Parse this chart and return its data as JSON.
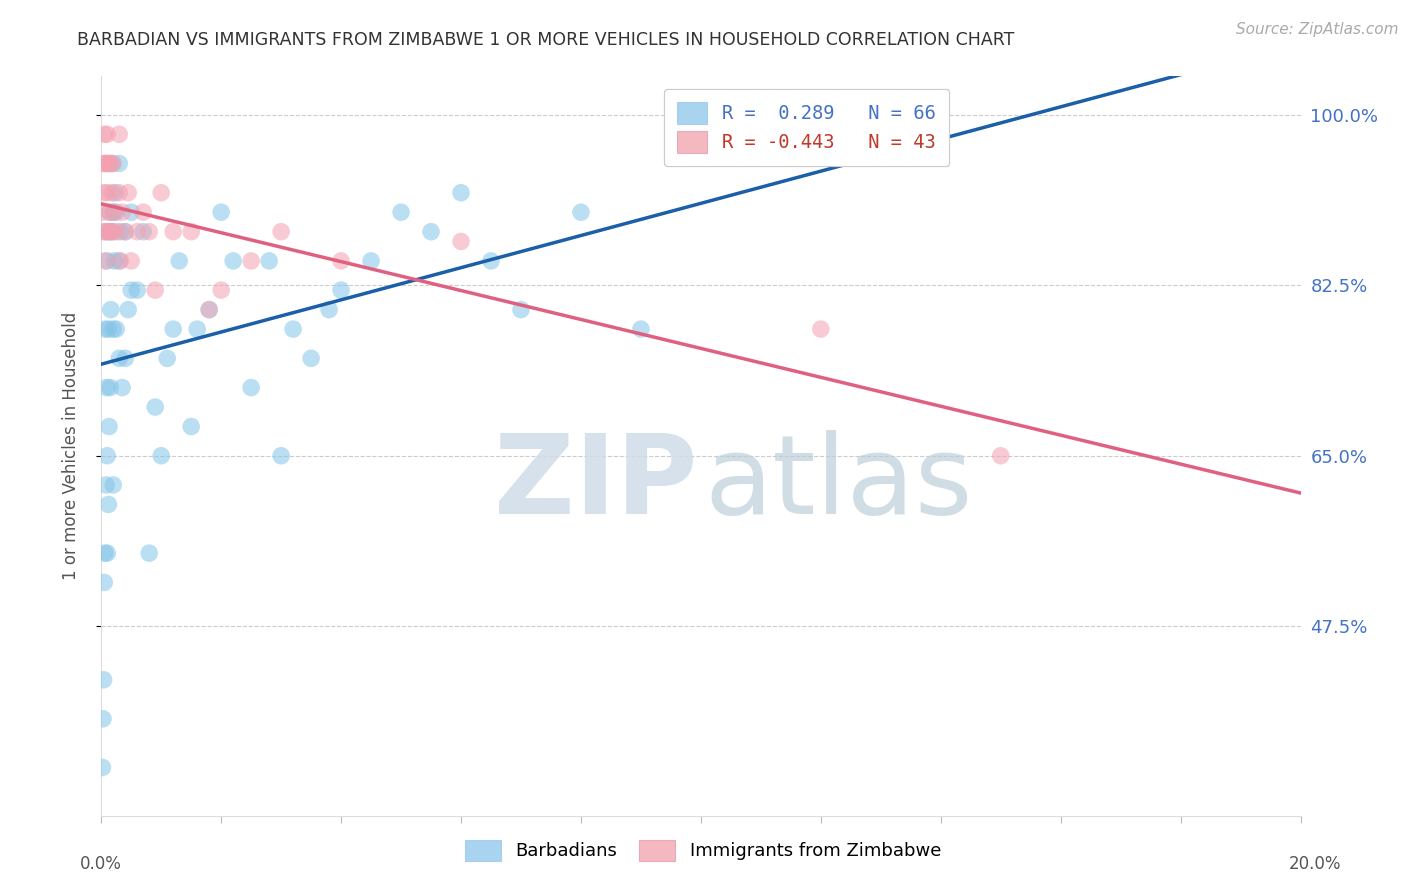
{
  "title": "BARBADIAN VS IMMIGRANTS FROM ZIMBABWE 1 OR MORE VEHICLES IN HOUSEHOLD CORRELATION CHART",
  "source": "Source: ZipAtlas.com",
  "ylabel": "1 or more Vehicles in Household",
  "ytick_labels": [
    "100.0%",
    "82.5%",
    "65.0%",
    "47.5%"
  ],
  "ytick_values": [
    1.0,
    0.825,
    0.65,
    0.475
  ],
  "legend_R_blue": "R =  0.289   N = 66",
  "legend_R_pink": "R = -0.443   N = 43",
  "barbadian_x": [
    0.0002,
    0.0003,
    0.0004,
    0.0005,
    0.0006,
    0.0007,
    0.0007,
    0.0008,
    0.0009,
    0.001,
    0.001,
    0.001,
    0.0012,
    0.0012,
    0.0013,
    0.0014,
    0.0015,
    0.0015,
    0.0016,
    0.0017,
    0.0018,
    0.002,
    0.002,
    0.002,
    0.0022,
    0.0023,
    0.0025,
    0.0025,
    0.003,
    0.003,
    0.003,
    0.0032,
    0.0035,
    0.004,
    0.004,
    0.0045,
    0.005,
    0.005,
    0.006,
    0.007,
    0.008,
    0.009,
    0.01,
    0.011,
    0.012,
    0.013,
    0.015,
    0.016,
    0.018,
    0.02,
    0.022,
    0.025,
    0.028,
    0.03,
    0.032,
    0.035,
    0.038,
    0.04,
    0.045,
    0.05,
    0.055,
    0.06,
    0.065,
    0.07,
    0.08,
    0.09
  ],
  "barbadian_y": [
    0.33,
    0.38,
    0.42,
    0.52,
    0.55,
    0.78,
    0.88,
    0.62,
    0.72,
    0.55,
    0.65,
    0.85,
    0.6,
    0.78,
    0.68,
    0.88,
    0.72,
    0.9,
    0.8,
    0.88,
    0.95,
    0.62,
    0.78,
    0.9,
    0.85,
    0.92,
    0.78,
    0.9,
    0.75,
    0.85,
    0.95,
    0.88,
    0.72,
    0.75,
    0.88,
    0.8,
    0.82,
    0.9,
    0.82,
    0.88,
    0.55,
    0.7,
    0.65,
    0.75,
    0.78,
    0.85,
    0.68,
    0.78,
    0.8,
    0.9,
    0.85,
    0.72,
    0.85,
    0.65,
    0.78,
    0.75,
    0.8,
    0.82,
    0.85,
    0.9,
    0.88,
    0.92,
    0.85,
    0.8,
    0.9,
    0.78
  ],
  "zimbabwe_x": [
    0.0002,
    0.0003,
    0.0004,
    0.0005,
    0.0005,
    0.0006,
    0.0007,
    0.0008,
    0.0009,
    0.001,
    0.001,
    0.0012,
    0.0012,
    0.0013,
    0.0015,
    0.0016,
    0.0018,
    0.002,
    0.002,
    0.0022,
    0.0025,
    0.003,
    0.003,
    0.0032,
    0.0035,
    0.004,
    0.0045,
    0.005,
    0.006,
    0.007,
    0.008,
    0.009,
    0.01,
    0.012,
    0.015,
    0.018,
    0.02,
    0.025,
    0.03,
    0.04,
    0.06,
    0.12,
    0.15
  ],
  "zimbabwe_y": [
    0.9,
    0.88,
    0.95,
    0.92,
    0.98,
    0.85,
    0.95,
    0.88,
    0.95,
    0.92,
    0.98,
    0.88,
    0.95,
    0.9,
    0.95,
    0.88,
    0.92,
    0.88,
    0.95,
    0.9,
    0.88,
    0.92,
    0.98,
    0.85,
    0.9,
    0.88,
    0.92,
    0.85,
    0.88,
    0.9,
    0.88,
    0.82,
    0.92,
    0.88,
    0.88,
    0.8,
    0.82,
    0.85,
    0.88,
    0.85,
    0.87,
    0.78,
    0.65
  ],
  "blue_scatter_color": "#82c4e8",
  "pink_scatter_color": "#f4a0b0",
  "blue_line_color": "#1a5fa8",
  "pink_line_color": "#e06080",
  "blue_legend_color": "#a8d4f0",
  "pink_legend_color": "#f4b8c0",
  "background_color": "#ffffff",
  "xmin": 0.0,
  "xmax": 0.2,
  "ymin": 0.28,
  "ymax": 1.04,
  "grid_color": "#cccccc",
  "right_label_color": "#4472C4",
  "title_color": "#333333",
  "watermark_color_ZIP": "#d0dce8",
  "watermark_color_atlas": "#b8ccd8"
}
